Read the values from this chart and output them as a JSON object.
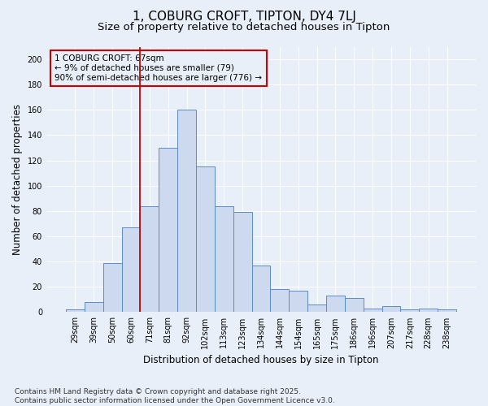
{
  "title": "1, COBURG CROFT, TIPTON, DY4 7LJ",
  "subtitle": "Size of property relative to detached houses in Tipton",
  "xlabel": "Distribution of detached houses by size in Tipton",
  "ylabel": "Number of detached properties",
  "categories": [
    "29sqm",
    "39sqm",
    "50sqm",
    "60sqm",
    "71sqm",
    "81sqm",
    "92sqm",
    "102sqm",
    "113sqm",
    "123sqm",
    "134sqm",
    "144sqm",
    "154sqm",
    "165sqm",
    "175sqm",
    "186sqm",
    "196sqm",
    "207sqm",
    "217sqm",
    "228sqm",
    "238sqm"
  ],
  "values": [
    2,
    8,
    39,
    67,
    84,
    130,
    160,
    115,
    84,
    79,
    37,
    18,
    17,
    6,
    13,
    11,
    3,
    5,
    2,
    3,
    2
  ],
  "bar_color": "#ccd9ee",
  "bar_edge_color": "#5b8cc8",
  "background_color": "#e8eff8",
  "vline_color": "#cc0000",
  "vline_x_index": 3.5,
  "annotation_line1": "1 COBURG CROFT: 67sqm",
  "annotation_line2": "← 9% of detached houses are smaller (79)",
  "annotation_line3": "90% of semi-detached houses are larger (776) →",
  "footer": "Contains HM Land Registry data © Crown copyright and database right 2025.\nContains public sector information licensed under the Open Government Licence v3.0.",
  "ylim": [
    0,
    210
  ],
  "yticks": [
    0,
    20,
    40,
    60,
    80,
    100,
    120,
    140,
    160,
    180,
    200
  ],
  "title_fontsize": 11,
  "subtitle_fontsize": 9.5,
  "axis_label_fontsize": 8.5,
  "tick_fontsize": 7,
  "footer_fontsize": 6.5,
  "annotation_fontsize": 7.5
}
